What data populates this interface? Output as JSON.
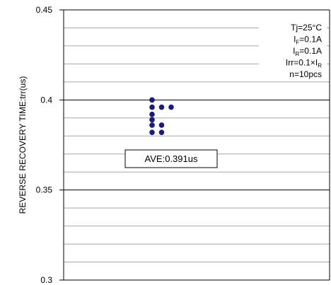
{
  "chart_data": {
    "type": "scatter",
    "ylabel": "REVERSE RECOVERY TIME:trr(us)",
    "ylim": [
      0.3,
      0.45
    ],
    "yticks": [
      "0.3",
      "0.35",
      "0.4",
      "0.45"
    ],
    "grid": true,
    "conditions": [
      {
        "main": "Tj=25°C",
        "sub": "",
        "rest": ""
      },
      {
        "main": "I",
        "sub": "F",
        "rest": "=0.1A"
      },
      {
        "main": "I",
        "sub": "R",
        "rest": "=0.1A"
      },
      {
        "main": "Irr=0.1×I",
        "sub": "R",
        "rest": ""
      },
      {
        "main": "n=10pcs",
        "sub": "",
        "rest": ""
      }
    ],
    "annotation": "AVE:0.391us",
    "series": [
      {
        "color": "#1a1a80",
        "points": [
          {
            "x": 0,
            "y": 0.4
          },
          {
            "x": 0,
            "y": 0.396
          },
          {
            "x": 1,
            "y": 0.396
          },
          {
            "x": 2,
            "y": 0.396
          },
          {
            "x": 0,
            "y": 0.392
          },
          {
            "x": 0,
            "y": 0.389
          },
          {
            "x": 0,
            "y": 0.386
          },
          {
            "x": 1,
            "y": 0.386
          },
          {
            "x": 0,
            "y": 0.382
          },
          {
            "x": 1,
            "y": 0.382
          }
        ]
      }
    ]
  }
}
